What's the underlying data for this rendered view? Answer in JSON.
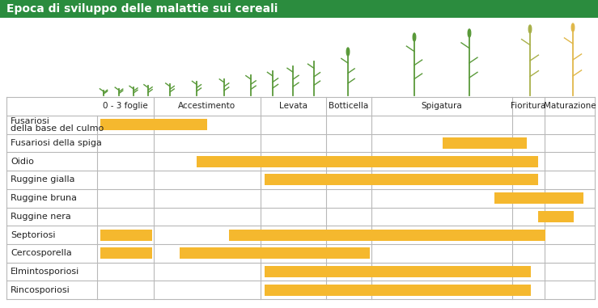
{
  "chart_data": {
    "type": "gantt",
    "title": "Epoca di sviluppo delle malattie sui cereali",
    "orientation": "horizontal",
    "tick_labels": false,
    "color": "#f5b82e",
    "xlim": [
      0,
      100
    ],
    "stages": [
      {
        "name": "0 - 3 foglie",
        "start": 0,
        "end": 11.4
      },
      {
        "name": "Accestimento",
        "start": 11.4,
        "end": 32.8
      },
      {
        "name": "Levata",
        "start": 32.8,
        "end": 46.0
      },
      {
        "name": "Botticella",
        "start": 46.0,
        "end": 55.1
      },
      {
        "name": "Spigatura",
        "start": 55.1,
        "end": 83.4
      },
      {
        "name": "Fioritura",
        "start": 83.4,
        "end": 89.9
      },
      {
        "name": "Maturazione",
        "start": 89.9,
        "end": 100
      }
    ],
    "categories": [
      "Fusariosi\ndella base del culmo",
      "Fusariosi della spiga",
      "Oidio",
      "Ruggine gialla",
      "Ruggine bruna",
      "Ruggine nera",
      "Septoriosi",
      "Cercosporella",
      "Elmintosporiosi",
      "Rincosporiosi"
    ],
    "values": [
      [
        [
          0.7,
          22.1
        ]
      ],
      [
        [
          69.4,
          86.3
        ]
      ],
      [
        [
          20.0,
          88.6
        ]
      ],
      [
        [
          33.7,
          88.6
        ]
      ],
      [
        [
          79.8,
          97.7
        ]
      ],
      [
        [
          88.6,
          95.8
        ]
      ],
      [
        [
          0.7,
          11.1
        ],
        [
          26.5,
          90.1
        ]
      ],
      [
        [
          0.7,
          11.1
        ],
        [
          16.6,
          54.8
        ]
      ],
      [
        [
          33.7,
          87.2
        ]
      ],
      [
        [
          33.7,
          87.2
        ]
      ]
    ]
  }
}
